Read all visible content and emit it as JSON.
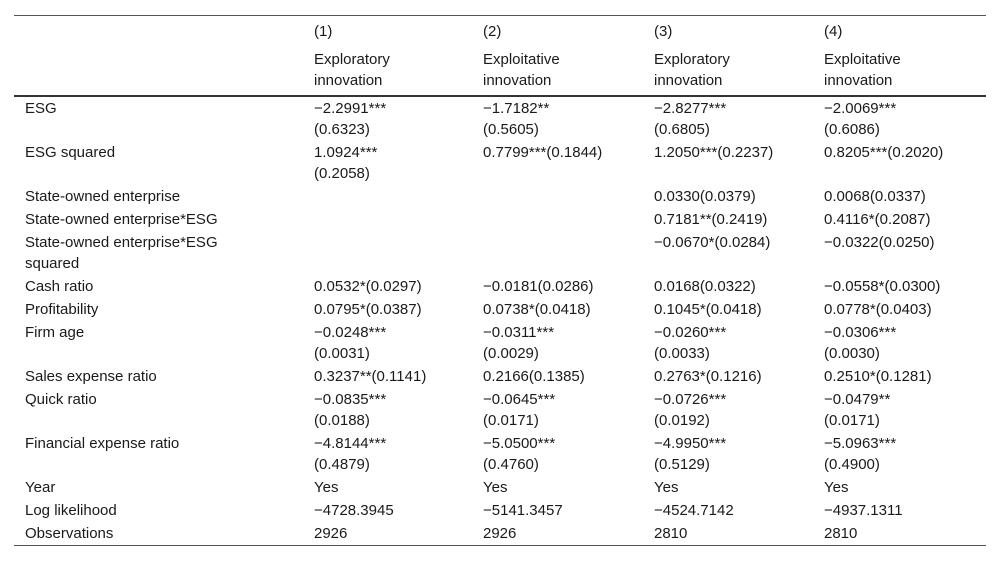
{
  "columns": [
    {
      "number": "(1)",
      "title": [
        "Exploratory",
        "innovation"
      ]
    },
    {
      "number": "(2)",
      "title": [
        "Exploitative",
        "innovation"
      ]
    },
    {
      "number": "(3)",
      "title": [
        "Exploratory",
        "innovation"
      ]
    },
    {
      "number": "(4)",
      "title": [
        "Exploitative",
        "innovation"
      ]
    }
  ],
  "rows": [
    {
      "label": [
        "ESG"
      ],
      "cells": [
        [
          "−2.2991***",
          "(0.6323)"
        ],
        [
          "−1.7182**",
          "(0.5605)"
        ],
        [
          "−2.8277***",
          "(0.6805)"
        ],
        [
          "−2.0069***",
          "(0.6086)"
        ]
      ]
    },
    {
      "label": [
        "ESG squared"
      ],
      "cells": [
        [
          "1.0924***",
          "(0.2058)"
        ],
        [
          "0.7799***(0.1844)"
        ],
        [
          "1.2050***(0.2237)"
        ],
        [
          "0.8205***(0.2020)"
        ]
      ]
    },
    {
      "label": [
        "State-owned enterprise"
      ],
      "cells": [
        [],
        [],
        [
          "0.0330(0.0379)"
        ],
        [
          "0.0068(0.0337)"
        ]
      ]
    },
    {
      "label": [
        "State-owned enterprise*ESG"
      ],
      "cells": [
        [],
        [],
        [
          "0.7181**(0.2419)"
        ],
        [
          "0.4116*(0.2087)"
        ]
      ]
    },
    {
      "label": [
        "State-owned enterprise*ESG",
        "squared"
      ],
      "cells": [
        [],
        [],
        [
          "−0.0670*(0.0284)"
        ],
        [
          "−0.0322(0.0250)"
        ]
      ]
    },
    {
      "label": [
        "Cash ratio"
      ],
      "cells": [
        [
          "0.0532*(0.0297)"
        ],
        [
          "−0.0181(0.0286)"
        ],
        [
          "0.0168(0.0322)"
        ],
        [
          "−0.0558*(0.0300)"
        ]
      ]
    },
    {
      "label": [
        "Profitability"
      ],
      "cells": [
        [
          "0.0795*(0.0387)"
        ],
        [
          "0.0738*(0.0418)"
        ],
        [
          "0.1045*(0.0418)"
        ],
        [
          "0.0778*(0.0403)"
        ]
      ]
    },
    {
      "label": [
        "Firm age"
      ],
      "cells": [
        [
          "−0.0248***",
          "(0.0031)"
        ],
        [
          "−0.0311***",
          "(0.0029)"
        ],
        [
          "−0.0260***",
          "(0.0033)"
        ],
        [
          "−0.0306***",
          "(0.0030)"
        ]
      ]
    },
    {
      "label": [
        "Sales expense ratio"
      ],
      "cells": [
        [
          "0.3237**(0.1141)"
        ],
        [
          "0.2166(0.1385)"
        ],
        [
          "0.2763*(0.1216)"
        ],
        [
          "0.2510*(0.1281)"
        ]
      ]
    },
    {
      "label": [
        "Quick ratio"
      ],
      "cells": [
        [
          "−0.0835***",
          "(0.0188)"
        ],
        [
          "−0.0645***",
          "(0.0171)"
        ],
        [
          "−0.0726***",
          "(0.0192)"
        ],
        [
          "−0.0479**",
          "(0.0171)"
        ]
      ]
    },
    {
      "label": [
        "Financial expense ratio"
      ],
      "cells": [
        [
          "−4.8144***",
          "(0.4879)"
        ],
        [
          "−5.0500***",
          "(0.4760)"
        ],
        [
          "−4.9950***",
          "(0.5129)"
        ],
        [
          "−5.0963***",
          "(0.4900)"
        ]
      ]
    },
    {
      "label": [
        "Year"
      ],
      "cells": [
        [
          "Yes"
        ],
        [
          "Yes"
        ],
        [
          "Yes"
        ],
        [
          "Yes"
        ]
      ]
    },
    {
      "label": [
        "Log likelihood"
      ],
      "cells": [
        [
          "−4728.3945"
        ],
        [
          "−5141.3457"
        ],
        [
          "−4524.7142"
        ],
        [
          "−4937.1311"
        ]
      ]
    },
    {
      "label": [
        "Observations"
      ],
      "cells": [
        [
          "2926"
        ],
        [
          "2926"
        ],
        [
          "2810"
        ],
        [
          "2810"
        ]
      ]
    }
  ]
}
